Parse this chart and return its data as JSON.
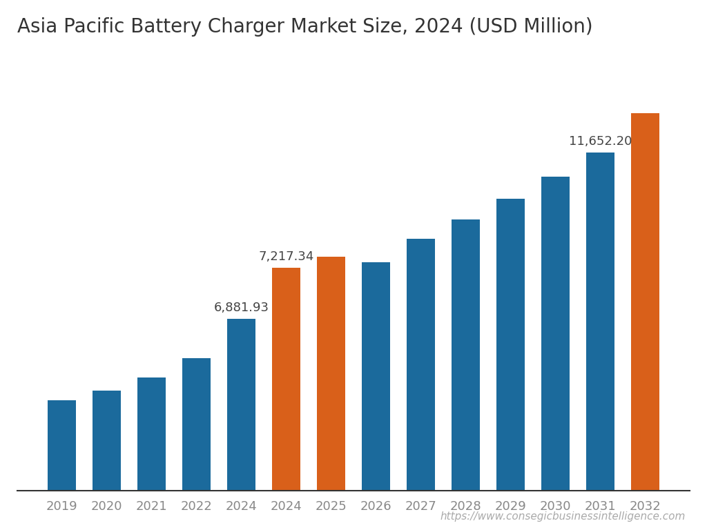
{
  "title": "Asia Pacific Battery Charger Market Size, 2024 (USD Million)",
  "categories": [
    "2019",
    "2020",
    "2021",
    "2022",
    "2024",
    "2024",
    "2025",
    "2026",
    "2027",
    "2028",
    "2029",
    "2030",
    "2031",
    "2032"
  ],
  "values": [
    2800,
    3100,
    3500,
    4100,
    5300,
    6881.93,
    7217.34,
    7050,
    7780,
    8380,
    9020,
    9700,
    10450,
    11652.2
  ],
  "bar_colors": [
    "#1b6a9c",
    "#1b6a9c",
    "#1b6a9c",
    "#1b6a9c",
    "#1b6a9c",
    "#d9601a",
    "#d9601a",
    "#1b6a9c",
    "#1b6a9c",
    "#1b6a9c",
    "#1b6a9c",
    "#1b6a9c",
    "#1b6a9c",
    "#d9601a"
  ],
  "annotated_indices": [
    5,
    6,
    13
  ],
  "annotated_labels": [
    "6,881.93",
    "7,217.34",
    "11,652.20"
  ],
  "background_color": "#ffffff",
  "bar_width": 0.62,
  "ylim_max": 13500,
  "title_fontsize": 20,
  "annotation_fontsize": 13,
  "tick_fontsize": 13,
  "tick_color": "#888888",
  "bar_color_blue": "#1b6a9c",
  "bar_color_orange": "#d9601a",
  "spine_color": "#333333",
  "text_color": "#444444",
  "watermark": "https://www.consegicbusinessintelligence.com",
  "watermark_fontsize": 11
}
